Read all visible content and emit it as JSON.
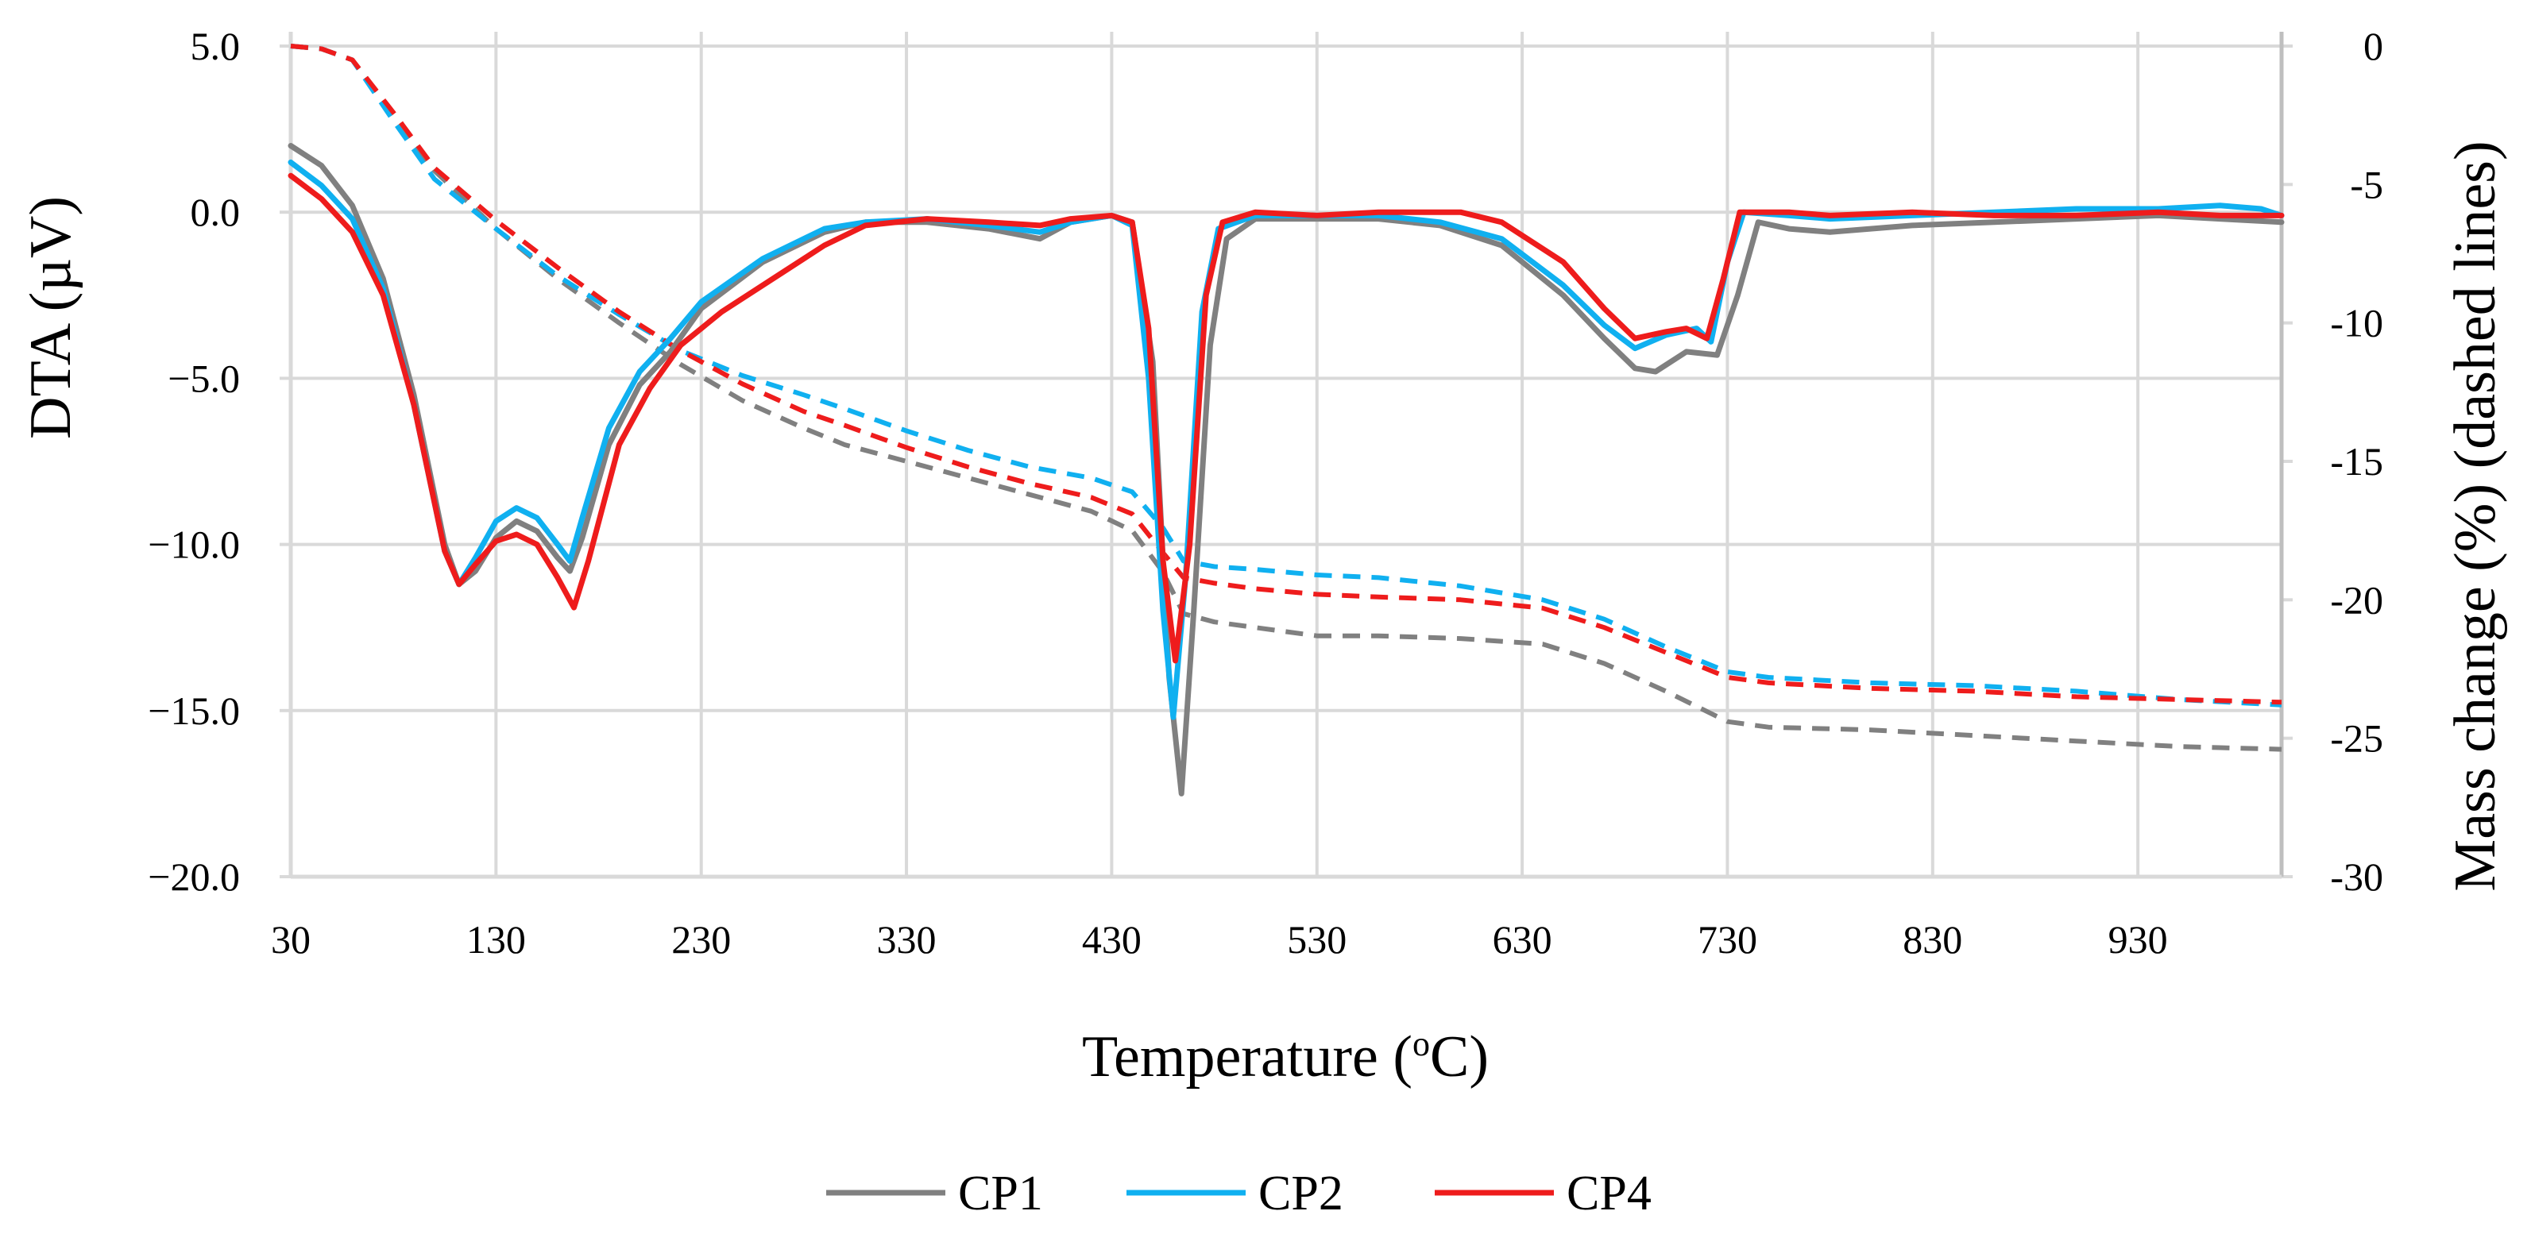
{
  "chart_data": {
    "type": "line",
    "title": "",
    "xlabel": "Temperature (",
    "xlabel_sup": "o",
    "xlabel_unit": "C)",
    "ylabel": "DTA (µV)",
    "y2label": "Mass change (%) (dashed lines)",
    "xlim": [
      30,
      1000
    ],
    "ylim": [
      -20,
      5
    ],
    "y2lim": [
      -30,
      0
    ],
    "x_ticks": [
      30,
      130,
      230,
      330,
      430,
      530,
      630,
      730,
      830,
      930
    ],
    "y_ticks": [
      "5.0",
      "0.0",
      "−5.0",
      "−10.0",
      "−15.0",
      "−20.0"
    ],
    "y_tick_values": [
      5,
      0,
      -5,
      -10,
      -15,
      -20
    ],
    "y2_ticks": [
      "0",
      "-5",
      "-10",
      "-15",
      "-20",
      "-25",
      "-30"
    ],
    "y2_tick_values": [
      0,
      -5,
      -10,
      -15,
      -20,
      -25,
      -30
    ],
    "grid": true,
    "legend_position": "bottom",
    "legend": [
      "CP1",
      "CP2",
      "CP4"
    ],
    "series": [
      {
        "name": "CP1",
        "color": "#808080",
        "dta": [
          [
            30,
            2.0
          ],
          [
            45,
            1.4
          ],
          [
            60,
            0.2
          ],
          [
            75,
            -2.0
          ],
          [
            90,
            -5.5
          ],
          [
            105,
            -10.0
          ],
          [
            112,
            -11.2
          ],
          [
            120,
            -10.8
          ],
          [
            130,
            -9.8
          ],
          [
            140,
            -9.3
          ],
          [
            150,
            -9.6
          ],
          [
            160,
            -10.4
          ],
          [
            166,
            -10.8
          ],
          [
            172,
            -9.8
          ],
          [
            185,
            -7.0
          ],
          [
            200,
            -5.2
          ],
          [
            215,
            -4.2
          ],
          [
            230,
            -2.9
          ],
          [
            260,
            -1.5
          ],
          [
            290,
            -0.6
          ],
          [
            310,
            -0.3
          ],
          [
            340,
            -0.3
          ],
          [
            370,
            -0.5
          ],
          [
            395,
            -0.8
          ],
          [
            410,
            -0.3
          ],
          [
            430,
            -0.1
          ],
          [
            440,
            -0.3
          ],
          [
            450,
            -4.5
          ],
          [
            458,
            -14.0
          ],
          [
            464,
            -17.5
          ],
          [
            470,
            -12.0
          ],
          [
            478,
            -4.0
          ],
          [
            486,
            -0.8
          ],
          [
            500,
            -0.2
          ],
          [
            530,
            -0.2
          ],
          [
            560,
            -0.2
          ],
          [
            590,
            -0.4
          ],
          [
            620,
            -1.0
          ],
          [
            650,
            -2.5
          ],
          [
            670,
            -3.8
          ],
          [
            685,
            -4.7
          ],
          [
            695,
            -4.8
          ],
          [
            710,
            -4.2
          ],
          [
            725,
            -4.3
          ],
          [
            735,
            -2.5
          ],
          [
            745,
            -0.3
          ],
          [
            760,
            -0.5
          ],
          [
            780,
            -0.6
          ],
          [
            820,
            -0.4
          ],
          [
            860,
            -0.3
          ],
          [
            900,
            -0.2
          ],
          [
            940,
            -0.1
          ],
          [
            970,
            -0.2
          ],
          [
            1000,
            -0.3
          ]
        ],
        "mass": [
          [
            30,
            0
          ],
          [
            45,
            -0.1
          ],
          [
            60,
            -0.5
          ],
          [
            80,
            -2.5
          ],
          [
            100,
            -4.5
          ],
          [
            130,
            -6.6
          ],
          [
            160,
            -8.4
          ],
          [
            190,
            -10.0
          ],
          [
            220,
            -11.5
          ],
          [
            250,
            -12.8
          ],
          [
            280,
            -13.8
          ],
          [
            300,
            -14.4
          ],
          [
            330,
            -15.0
          ],
          [
            360,
            -15.6
          ],
          [
            390,
            -16.2
          ],
          [
            420,
            -16.8
          ],
          [
            440,
            -17.5
          ],
          [
            455,
            -19.0
          ],
          [
            465,
            -20.5
          ],
          [
            480,
            -20.8
          ],
          [
            500,
            -21.0
          ],
          [
            530,
            -21.3
          ],
          [
            560,
            -21.3
          ],
          [
            600,
            -21.4
          ],
          [
            640,
            -21.6
          ],
          [
            670,
            -22.3
          ],
          [
            700,
            -23.3
          ],
          [
            730,
            -24.4
          ],
          [
            750,
            -24.6
          ],
          [
            800,
            -24.7
          ],
          [
            850,
            -24.9
          ],
          [
            900,
            -25.1
          ],
          [
            950,
            -25.3
          ],
          [
            1000,
            -25.4
          ]
        ]
      },
      {
        "name": "CP2",
        "color": "#10B0F0",
        "dta": [
          [
            30,
            1.5
          ],
          [
            45,
            0.8
          ],
          [
            60,
            -0.2
          ],
          [
            75,
            -2.3
          ],
          [
            90,
            -5.8
          ],
          [
            105,
            -10.2
          ],
          [
            112,
            -11.2
          ],
          [
            120,
            -10.4
          ],
          [
            130,
            -9.3
          ],
          [
            140,
            -8.9
          ],
          [
            150,
            -9.2
          ],
          [
            160,
            -10.0
          ],
          [
            166,
            -10.5
          ],
          [
            172,
            -9.2
          ],
          [
            185,
            -6.5
          ],
          [
            200,
            -4.8
          ],
          [
            215,
            -3.8
          ],
          [
            230,
            -2.7
          ],
          [
            260,
            -1.4
          ],
          [
            290,
            -0.5
          ],
          [
            310,
            -0.3
          ],
          [
            340,
            -0.2
          ],
          [
            370,
            -0.4
          ],
          [
            395,
            -0.6
          ],
          [
            410,
            -0.3
          ],
          [
            430,
            -0.1
          ],
          [
            440,
            -0.4
          ],
          [
            448,
            -5.0
          ],
          [
            455,
            -12.0
          ],
          [
            460,
            -15.2
          ],
          [
            466,
            -11.0
          ],
          [
            474,
            -3.0
          ],
          [
            482,
            -0.5
          ],
          [
            500,
            -0.1
          ],
          [
            530,
            -0.1
          ],
          [
            560,
            -0.1
          ],
          [
            590,
            -0.3
          ],
          [
            620,
            -0.8
          ],
          [
            650,
            -2.2
          ],
          [
            670,
            -3.4
          ],
          [
            685,
            -4.1
          ],
          [
            700,
            -3.7
          ],
          [
            715,
            -3.5
          ],
          [
            722,
            -3.9
          ],
          [
            730,
            -1.5
          ],
          [
            738,
            0.0
          ],
          [
            760,
            -0.1
          ],
          [
            780,
            -0.2
          ],
          [
            820,
            -0.1
          ],
          [
            860,
            0.0
          ],
          [
            900,
            0.1
          ],
          [
            940,
            0.1
          ],
          [
            970,
            0.2
          ],
          [
            990,
            0.1
          ],
          [
            1000,
            -0.1
          ]
        ],
        "mass": [
          [
            30,
            0
          ],
          [
            45,
            -0.1
          ],
          [
            60,
            -0.5
          ],
          [
            80,
            -2.7
          ],
          [
            100,
            -4.8
          ],
          [
            130,
            -6.6
          ],
          [
            160,
            -8.3
          ],
          [
            190,
            -9.7
          ],
          [
            220,
            -11.0
          ],
          [
            250,
            -11.9
          ],
          [
            280,
            -12.6
          ],
          [
            300,
            -13.1
          ],
          [
            330,
            -13.9
          ],
          [
            360,
            -14.6
          ],
          [
            390,
            -15.2
          ],
          [
            420,
            -15.6
          ],
          [
            440,
            -16.1
          ],
          [
            455,
            -17.4
          ],
          [
            465,
            -18.6
          ],
          [
            480,
            -18.8
          ],
          [
            500,
            -18.9
          ],
          [
            530,
            -19.1
          ],
          [
            560,
            -19.2
          ],
          [
            600,
            -19.5
          ],
          [
            640,
            -20.0
          ],
          [
            670,
            -20.7
          ],
          [
            700,
            -21.7
          ],
          [
            730,
            -22.6
          ],
          [
            750,
            -22.8
          ],
          [
            800,
            -23.0
          ],
          [
            850,
            -23.1
          ],
          [
            900,
            -23.3
          ],
          [
            950,
            -23.6
          ],
          [
            1000,
            -23.8
          ]
        ]
      },
      {
        "name": "CP4",
        "color": "#EE1C1C",
        "dta": [
          [
            30,
            1.1
          ],
          [
            45,
            0.4
          ],
          [
            60,
            -0.6
          ],
          [
            75,
            -2.5
          ],
          [
            90,
            -5.8
          ],
          [
            105,
            -10.2
          ],
          [
            112,
            -11.2
          ],
          [
            120,
            -10.6
          ],
          [
            130,
            -9.9
          ],
          [
            140,
            -9.7
          ],
          [
            150,
            -10.0
          ],
          [
            160,
            -11.0
          ],
          [
            168,
            -11.9
          ],
          [
            175,
            -10.5
          ],
          [
            190,
            -7.0
          ],
          [
            205,
            -5.3
          ],
          [
            220,
            -4.0
          ],
          [
            240,
            -3.0
          ],
          [
            270,
            -1.8
          ],
          [
            290,
            -1.0
          ],
          [
            310,
            -0.4
          ],
          [
            340,
            -0.2
          ],
          [
            370,
            -0.3
          ],
          [
            395,
            -0.4
          ],
          [
            410,
            -0.2
          ],
          [
            430,
            -0.1
          ],
          [
            440,
            -0.3
          ],
          [
            448,
            -3.5
          ],
          [
            455,
            -10.5
          ],
          [
            461,
            -13.5
          ],
          [
            468,
            -10.0
          ],
          [
            476,
            -2.5
          ],
          [
            484,
            -0.3
          ],
          [
            500,
            0.0
          ],
          [
            530,
            -0.1
          ],
          [
            560,
            0.0
          ],
          [
            600,
            0.0
          ],
          [
            620,
            -0.3
          ],
          [
            650,
            -1.5
          ],
          [
            670,
            -2.9
          ],
          [
            685,
            -3.8
          ],
          [
            700,
            -3.6
          ],
          [
            710,
            -3.5
          ],
          [
            720,
            -3.8
          ],
          [
            728,
            -2.0
          ],
          [
            736,
            0.0
          ],
          [
            760,
            0.0
          ],
          [
            780,
            -0.1
          ],
          [
            820,
            0.0
          ],
          [
            860,
            -0.1
          ],
          [
            900,
            -0.1
          ],
          [
            940,
            0.0
          ],
          [
            970,
            -0.1
          ],
          [
            1000,
            -0.1
          ]
        ],
        "mass": [
          [
            30,
            0
          ],
          [
            45,
            -0.1
          ],
          [
            60,
            -0.5
          ],
          [
            80,
            -2.4
          ],
          [
            100,
            -4.4
          ],
          [
            130,
            -6.3
          ],
          [
            160,
            -8.0
          ],
          [
            190,
            -9.6
          ],
          [
            220,
            -11.0
          ],
          [
            250,
            -12.2
          ],
          [
            280,
            -13.2
          ],
          [
            300,
            -13.7
          ],
          [
            330,
            -14.5
          ],
          [
            360,
            -15.2
          ],
          [
            390,
            -15.8
          ],
          [
            420,
            -16.3
          ],
          [
            440,
            -16.9
          ],
          [
            455,
            -18.3
          ],
          [
            465,
            -19.2
          ],
          [
            480,
            -19.4
          ],
          [
            500,
            -19.6
          ],
          [
            530,
            -19.8
          ],
          [
            560,
            -19.9
          ],
          [
            600,
            -20.0
          ],
          [
            640,
            -20.3
          ],
          [
            670,
            -21.0
          ],
          [
            700,
            -21.9
          ],
          [
            730,
            -22.8
          ],
          [
            750,
            -23.0
          ],
          [
            800,
            -23.2
          ],
          [
            850,
            -23.3
          ],
          [
            900,
            -23.5
          ],
          [
            950,
            -23.6
          ],
          [
            1000,
            -23.7
          ]
        ]
      }
    ]
  }
}
